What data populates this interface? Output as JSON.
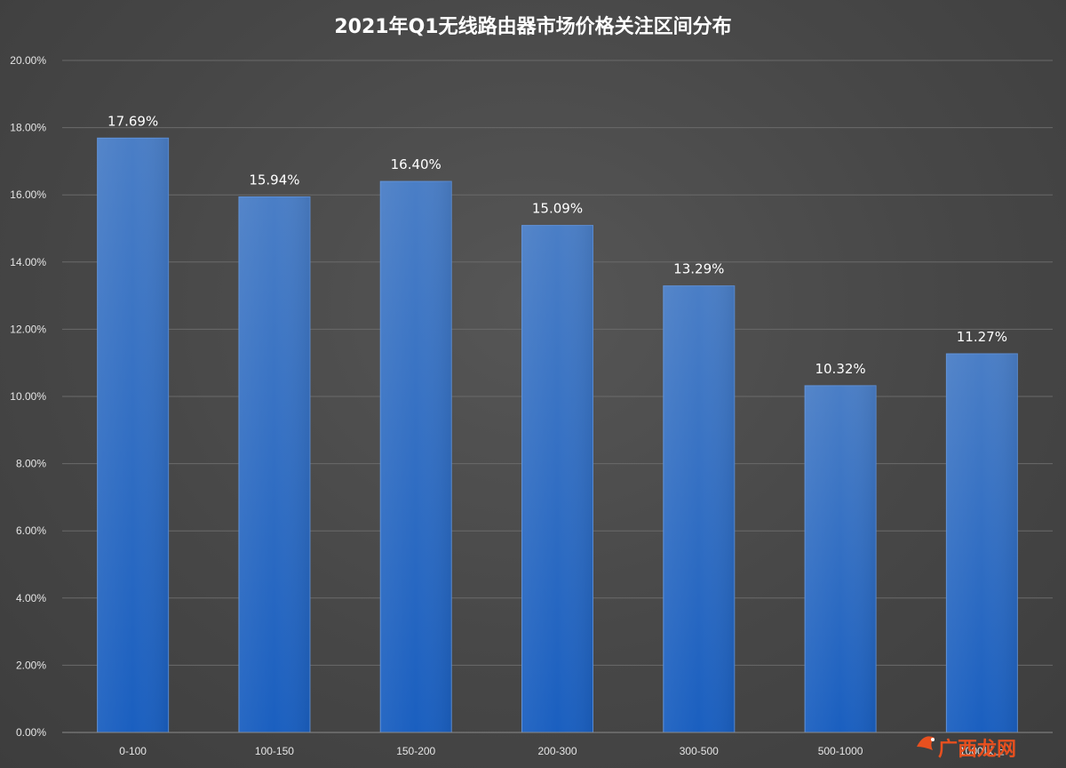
{
  "chart_data": {
    "type": "bar",
    "title": "2021年Q1无线路由器市场价格关注区间分布",
    "categories": [
      "0-100",
      "100-150",
      "150-200",
      "200-300",
      "300-500",
      "500-1000",
      "1000以上"
    ],
    "values": [
      17.69,
      15.94,
      16.4,
      15.09,
      13.29,
      10.32,
      11.27
    ],
    "value_labels": [
      "17.69%",
      "15.94%",
      "16.40%",
      "15.09%",
      "13.29%",
      "10.32%",
      "11.27%"
    ],
    "ylim": [
      0,
      20
    ],
    "yticks": [
      0,
      2,
      4,
      6,
      8,
      10,
      12,
      14,
      16,
      18,
      20
    ],
    "ytick_labels": [
      "0.00%",
      "2.00%",
      "4.00%",
      "6.00%",
      "8.00%",
      "10.00%",
      "12.00%",
      "14.00%",
      "16.00%",
      "18.00%",
      "20.00%"
    ],
    "grid": true,
    "legend": "none",
    "xlabel": "",
    "ylabel": "",
    "colors": {
      "bar_top": "#4a7ec6",
      "bar_bottom": "#1a5fc0",
      "background": "#4a4a4a",
      "grid": "#6a6a6a",
      "text": "#e6e6e6"
    }
  },
  "watermark": {
    "text": "广西龙网",
    "icon": "dragon-logo-icon"
  }
}
